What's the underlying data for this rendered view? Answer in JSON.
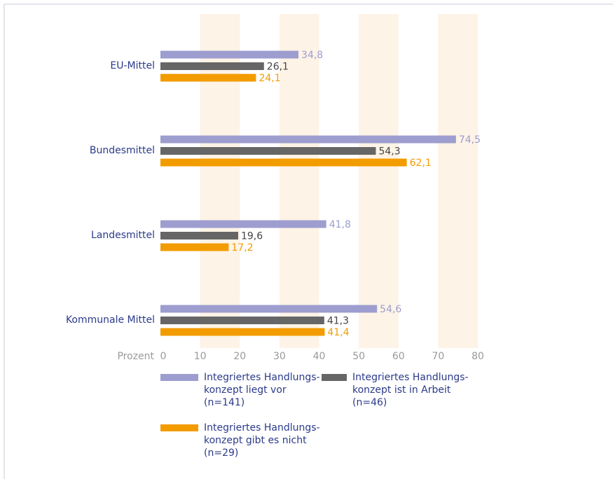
{
  "chart_data": {
    "type": "hbar",
    "categories": [
      "EU-Mittel",
      "Bundesmittel",
      "Landesmittel",
      "Kommunale Mittel"
    ],
    "series": [
      {
        "name": "Integriertes Handlungs-\nkonzept liegt vor\n(n=141)",
        "color": "#9d9dcf",
        "values": [
          34.8,
          74.5,
          41.8,
          54.6
        ],
        "value_labels": [
          "34,8",
          "74,5",
          "41,8",
          "54,6"
        ]
      },
      {
        "name": "Integriertes Handlungs-\nkonzept ist in Arbeit\n(n=46)",
        "color": "#666666",
        "values": [
          26.1,
          54.3,
          19.6,
          41.3
        ],
        "value_labels": [
          "26,1",
          "54,3",
          "19,6",
          "41,3"
        ]
      },
      {
        "name": "Integriertes Handlungs-\nkonzept gibt es nicht\n(n=29)",
        "color": "#f39c00",
        "values": [
          24.1,
          62.1,
          17.2,
          41.4
        ],
        "value_labels": [
          "24,1",
          "62,1",
          "17,2",
          "41,4"
        ]
      }
    ],
    "xlabel": "Prozent",
    "xlim": [
      0,
      80
    ],
    "xticks": [
      0,
      10,
      20,
      30,
      40,
      50,
      60,
      70,
      80
    ],
    "grid": true
  }
}
